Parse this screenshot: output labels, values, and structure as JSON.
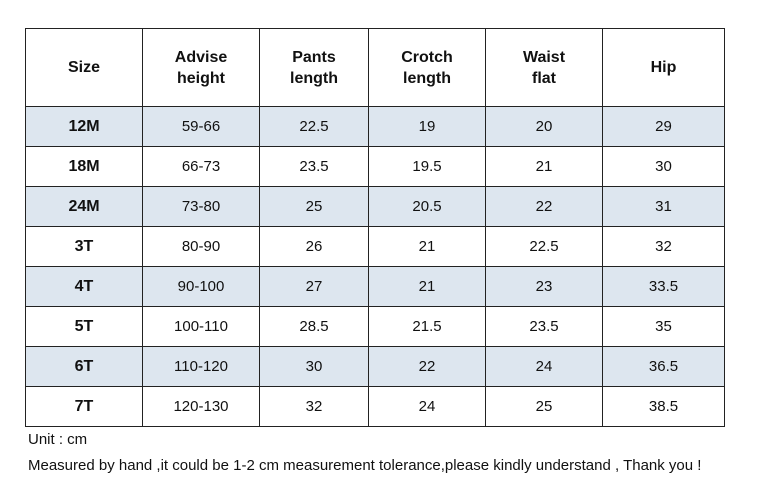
{
  "table": {
    "headers": [
      "Size",
      "Advise\nheight",
      "Pants\nlength",
      "Crotch\nlength",
      "Waist\nflat",
      "Hip"
    ],
    "rows": [
      [
        "12M",
        "59-66",
        "22.5",
        "19",
        "20",
        "29"
      ],
      [
        "18M",
        "66-73",
        "23.5",
        "19.5",
        "21",
        "30"
      ],
      [
        "24M",
        "73-80",
        "25",
        "20.5",
        "22",
        "31"
      ],
      [
        "3T",
        "80-90",
        "26",
        "21",
        "22.5",
        "32"
      ],
      [
        "4T",
        "90-100",
        "27",
        "21",
        "23",
        "33.5"
      ],
      [
        "5T",
        "100-110",
        "28.5",
        "21.5",
        "23.5",
        "35"
      ],
      [
        "6T",
        "110-120",
        "30",
        "22",
        "24",
        "36.5"
      ],
      [
        "7T",
        "120-130",
        "32",
        "24",
        "25",
        "38.5"
      ]
    ],
    "shaded_row_color": "#dde6ef",
    "plain_row_color": "#ffffff",
    "border_color": "#222222"
  },
  "notes": {
    "unit": "Unit : cm",
    "tolerance": "Measured by hand ,it could be 1-2 cm measurement tolerance,please kindly understand , Thank you !"
  }
}
